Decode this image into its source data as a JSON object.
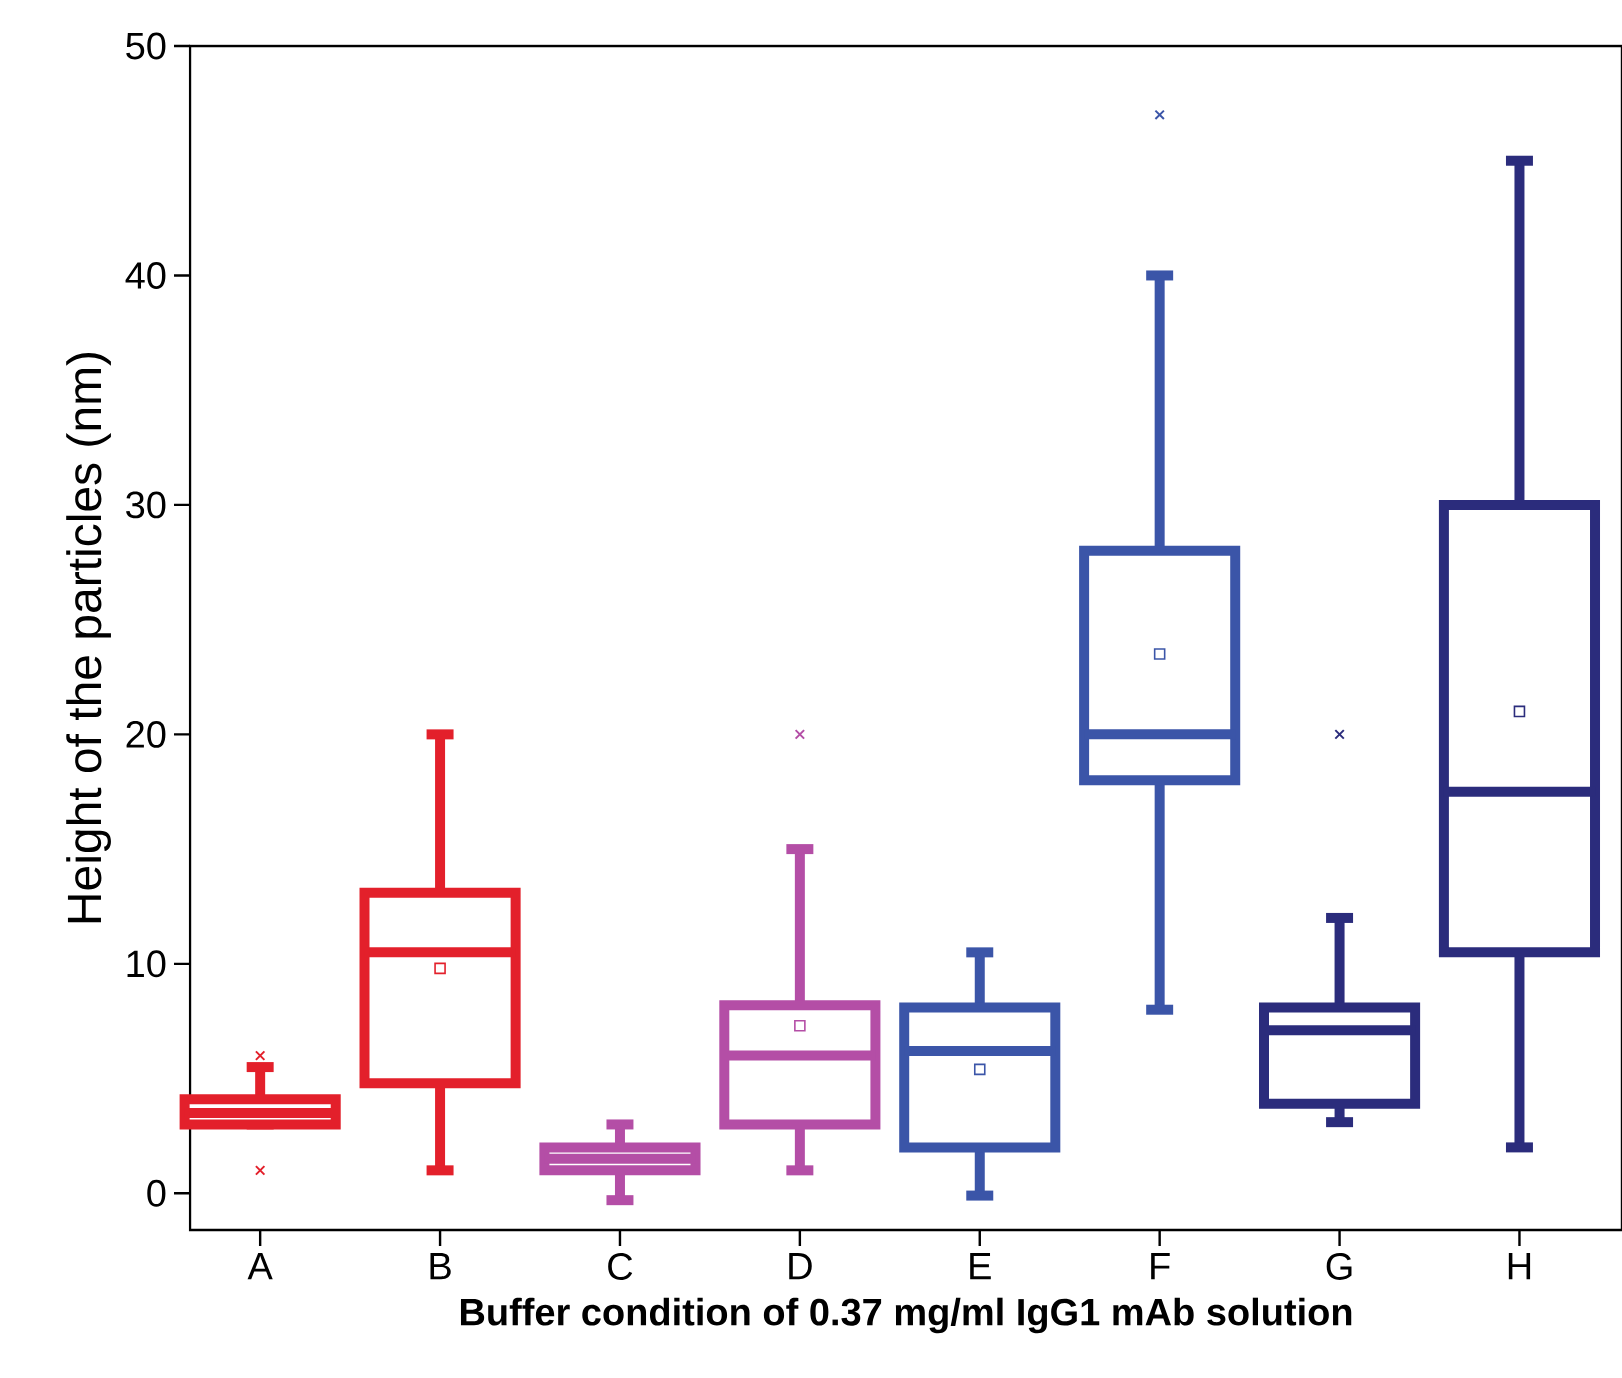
{
  "chart_data": {
    "type": "box",
    "xlabel": "Buffer condition of 0.37 mg/ml IgG1 mAb solution",
    "ylabel": "Height of the particles (nm)",
    "categories": [
      "A",
      "B",
      "C",
      "D",
      "E",
      "F",
      "G",
      "H"
    ],
    "colors": [
      "#e3202b",
      "#e3202b",
      "#b44ea6",
      "#b44ea6",
      "#3b55a8",
      "#3b55a8",
      "#2b2c7c",
      "#2b2c7c"
    ],
    "boxes": [
      {
        "low": 3.0,
        "q1": 3.0,
        "median": 3.5,
        "q3": 4.1,
        "high": 5.5,
        "outliers": [
          6,
          1
        ]
      },
      {
        "low": 1,
        "q1": 4.8,
        "median": 10.5,
        "q3": 13.1,
        "high": 20,
        "mean": 9.8
      },
      {
        "low": -0.3,
        "q1": 1.0,
        "median": 1.5,
        "q3": 2.0,
        "high": 3.0
      },
      {
        "low": 1,
        "q1": 3.0,
        "median": 6.0,
        "q3": 8.2,
        "high": 15,
        "mean": 7.3,
        "outliers": [
          20
        ]
      },
      {
        "low": -0.1,
        "q1": 2.0,
        "median": 6.2,
        "q3": 8.1,
        "high": 10.5,
        "mean": 5.4
      },
      {
        "low": 8,
        "q1": 18,
        "median": 20,
        "q3": 28,
        "high": 40,
        "mean": 23.5,
        "outliers": [
          47
        ]
      },
      {
        "low": 3.1,
        "q1": 3.9,
        "median": 7.1,
        "q3": 8.1,
        "high": 12,
        "outliers": [
          20
        ]
      },
      {
        "low": 2,
        "q1": 10.5,
        "median": 17.5,
        "q3": 30,
        "high": 45,
        "mean": 21
      }
    ],
    "ylim": [
      -1.6,
      50
    ],
    "yticks": [
      0,
      10,
      20,
      30,
      40,
      50
    ],
    "grid": false
  }
}
